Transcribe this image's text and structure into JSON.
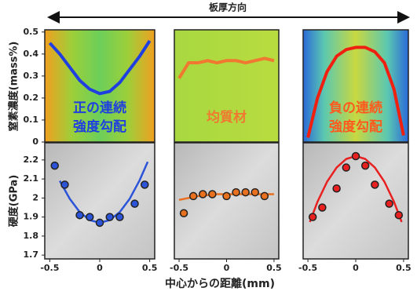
{
  "figure": {
    "arrow_label": "板厚方向",
    "xlabel": "中心からの距離(mm)",
    "ylabel_top": "窒素濃度(mass%)",
    "ylabel_bottom": "硬度(GPa)"
  },
  "chart_data": [
    {
      "type": "line",
      "xlim": [
        -0.55,
        0.55
      ],
      "ylim": [
        0,
        0.51
      ],
      "yticks": [
        0,
        0.1,
        0.2,
        0.3,
        0.4,
        0.5
      ],
      "color": "#1f3fe0",
      "x": [
        -0.5,
        -0.4,
        -0.3,
        -0.2,
        -0.1,
        0,
        0.1,
        0.2,
        0.3,
        0.4,
        0.5
      ],
      "values": [
        0.45,
        0.4,
        0.34,
        0.28,
        0.24,
        0.22,
        0.23,
        0.27,
        0.33,
        0.39,
        0.46
      ],
      "annotation": [
        "正の連続",
        "強度勾配"
      ],
      "annotation_color": "#1f3fe0"
    },
    {
      "type": "line",
      "xlim": [
        -0.55,
        0.55
      ],
      "ylim": [
        0,
        0.51
      ],
      "color": "#f07830",
      "x": [
        -0.5,
        -0.4,
        -0.3,
        -0.2,
        -0.1,
        0,
        0.1,
        0.2,
        0.3,
        0.4,
        0.5
      ],
      "values": [
        0.29,
        0.36,
        0.36,
        0.37,
        0.36,
        0.37,
        0.37,
        0.36,
        0.37,
        0.38,
        0.37
      ],
      "annotation": [
        "均質材"
      ],
      "annotation_color": "#f07830"
    },
    {
      "type": "line",
      "xlim": [
        -0.55,
        0.55
      ],
      "ylim": [
        0,
        0.51
      ],
      "color": "#f02010",
      "x": [
        -0.5,
        -0.4,
        -0.3,
        -0.2,
        -0.1,
        0,
        0.1,
        0.2,
        0.3,
        0.4,
        0.5
      ],
      "values": [
        0.02,
        0.2,
        0.32,
        0.39,
        0.42,
        0.43,
        0.43,
        0.41,
        0.36,
        0.24,
        0.03
      ],
      "annotation": [
        "負の連続",
        "強度勾配"
      ],
      "annotation_color": "#ff5a1e"
    },
    {
      "type": "scatter",
      "xlim": [
        -0.55,
        0.55
      ],
      "ylim": [
        1.68,
        2.29
      ],
      "yticks": [
        1.7,
        1.8,
        1.9,
        2,
        2.1,
        2.2
      ],
      "xticks": [
        -0.5,
        0,
        0.5
      ],
      "color": "#2b54d8",
      "x": [
        -0.45,
        -0.35,
        -0.2,
        -0.1,
        0,
        0.1,
        0.2,
        0.35,
        0.45
      ],
      "values": [
        2.17,
        2.07,
        1.91,
        1.9,
        1.87,
        1.9,
        1.9,
        1.97,
        2.07
      ],
      "fit_x": [
        -0.4,
        -0.3,
        -0.2,
        -0.1,
        0,
        0.1,
        0.2,
        0.3,
        0.4,
        0.48
      ],
      "fit_values": [
        2.09,
        1.996,
        1.926,
        1.884,
        1.87,
        1.884,
        1.926,
        1.996,
        2.094,
        2.19
      ]
    },
    {
      "type": "scatter",
      "xlim": [
        -0.55,
        0.55
      ],
      "ylim": [
        1.68,
        2.29
      ],
      "xticks": [
        -0.5,
        0,
        0.5
      ],
      "color": "#e8701e",
      "x": [
        -0.45,
        -0.35,
        -0.25,
        -0.15,
        0,
        0.1,
        0.2,
        0.3,
        0.4
      ],
      "values": [
        1.92,
        2.01,
        2.02,
        2.02,
        2.01,
        2.03,
        2.03,
        2.03,
        2.01
      ],
      "fit_x": [
        -0.5,
        -0.3,
        -0.1,
        0.1,
        0.3,
        0.5
      ],
      "fit_values": [
        1.99,
        2.01,
        2.02,
        2.02,
        2.02,
        2.02
      ]
    },
    {
      "type": "scatter",
      "xlim": [
        -0.55,
        0.55
      ],
      "ylim": [
        1.68,
        2.29
      ],
      "xticks": [
        -0.5,
        0,
        0.5
      ],
      "color": "#e82020",
      "x": [
        -0.45,
        -0.35,
        -0.2,
        -0.1,
        0,
        0.1,
        0.2,
        0.35,
        0.45
      ],
      "values": [
        1.9,
        1.95,
        2.05,
        2.16,
        2.22,
        2.17,
        2.07,
        1.97,
        1.91
      ],
      "fit_x": [
        -0.48,
        -0.4,
        -0.3,
        -0.2,
        -0.1,
        0,
        0.1,
        0.2,
        0.3,
        0.4,
        0.48
      ],
      "fit_values": [
        1.874,
        1.98,
        2.085,
        2.16,
        2.205,
        2.22,
        2.205,
        2.16,
        2.085,
        1.98,
        1.874
      ]
    }
  ]
}
